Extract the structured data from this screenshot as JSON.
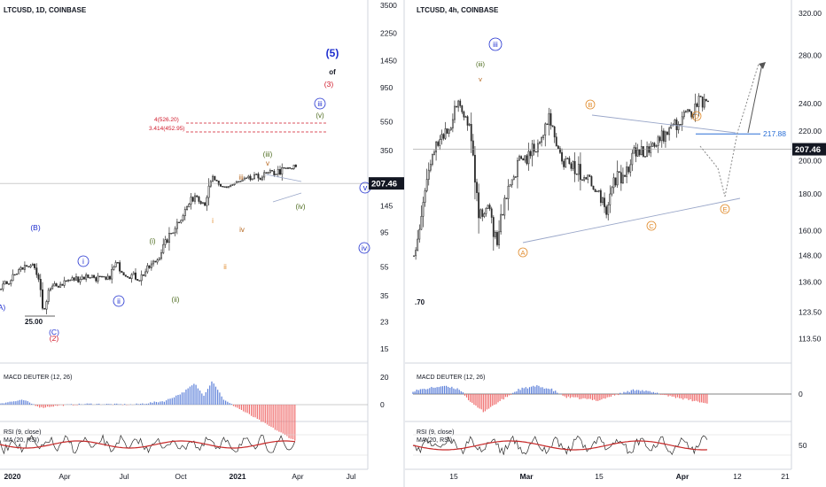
{
  "colors": {
    "candle": "#2b2b2b",
    "blue": "#1f2fcf",
    "red": "#d0192a",
    "green": "#4d6b1e",
    "orange": "#e08a2a",
    "brown": "#b5651d",
    "macd_pos": "#5b7fd9",
    "macd_neg": "#ef6b6b",
    "rsi_ma": "#c62828",
    "level_blue": "#2a6fd6",
    "trend": "#9aa7c9",
    "axis_text": "#131722",
    "grid": "#e6e6e6"
  },
  "chart_data": [
    {
      "type": "candlestick",
      "title": "LTCUSD, 1D, COINBASE",
      "y_scale": "log",
      "y_ticks": [
        "3500",
        "2250",
        "1450",
        "950",
        "550",
        "350",
        "145",
        "95",
        "55",
        "35",
        "23",
        "15"
      ],
      "x_ticks": [
        "2020",
        "Apr",
        "Jul",
        "Oct",
        "2021",
        "Apr",
        "Jul"
      ],
      "last_price": "207.46",
      "wave_labels": [
        {
          "text": "(5)",
          "color": "blue"
        },
        {
          "text": "of",
          "color": "dark"
        },
        {
          "text": "(3)",
          "color": "red"
        },
        {
          "text": "iii",
          "color": "blue"
        },
        {
          "text": "(v)",
          "color": "green"
        },
        {
          "text": "(iii)",
          "color": "green"
        },
        {
          "text": "v",
          "color": "brown"
        },
        {
          "text": "iii",
          "color": "brown"
        },
        {
          "text": "i",
          "color": "orange"
        },
        {
          "text": "iv",
          "color": "brown"
        },
        {
          "text": "ii",
          "color": "orange"
        },
        {
          "text": "(iv)",
          "color": "green"
        },
        {
          "text": "(i)",
          "color": "green"
        },
        {
          "text": "(ii)",
          "color": "green"
        },
        {
          "text": "(B)",
          "color": "blue"
        },
        {
          "text": "(C)",
          "color": "blue"
        },
        {
          "text": "(2)",
          "color": "red"
        },
        {
          "text": "i",
          "color": "blue"
        },
        {
          "text": "ii",
          "color": "blue"
        },
        {
          "text": "v",
          "color": "blue"
        },
        {
          "text": "iv",
          "color": "blue"
        },
        {
          "text": "A)",
          "color": "blue"
        }
      ],
      "fib_levels": [
        "4(526.20)",
        "3.414(452.95)"
      ],
      "low_label": "25.00",
      "indicators": [
        {
          "name": "MACD DEUTER (12, 26)",
          "y_ticks": [
            "20",
            "0"
          ]
        },
        {
          "name": "RSI (9, close)",
          "ma": "MA (20, RSI)"
        }
      ]
    },
    {
      "type": "candlestick",
      "title": "LTCUSD, 4h, COINBASE",
      "y_ticks": [
        "320.00",
        "280.00",
        "240.00",
        "220.00",
        "200.00",
        "180.00",
        "160.00",
        "148.00",
        "136.00",
        "123.50",
        "113.50"
      ],
      "x_ticks": [
        "15",
        "Mar",
        "15",
        "Apr",
        "12",
        "21"
      ],
      "last_price": "207.46",
      "level_label": "217.88",
      "left_label": ".70",
      "wave_labels": [
        {
          "text": "iii",
          "color": "blue"
        },
        {
          "text": "(iii)",
          "color": "green"
        },
        {
          "text": "v",
          "color": "brown"
        },
        {
          "text": "A",
          "color": "orange"
        },
        {
          "text": "B",
          "color": "orange"
        },
        {
          "text": "C",
          "color": "orange"
        },
        {
          "text": "D",
          "color": "orange"
        },
        {
          "text": "E",
          "color": "orange"
        }
      ],
      "indicators": [
        {
          "name": "MACD DEUTER (12, 26)",
          "y_ticks": [
            "0"
          ]
        },
        {
          "name": "RSI (9, close)",
          "ma": "MA (20, RSI)",
          "y_ticks": [
            "50"
          ]
        }
      ]
    }
  ]
}
